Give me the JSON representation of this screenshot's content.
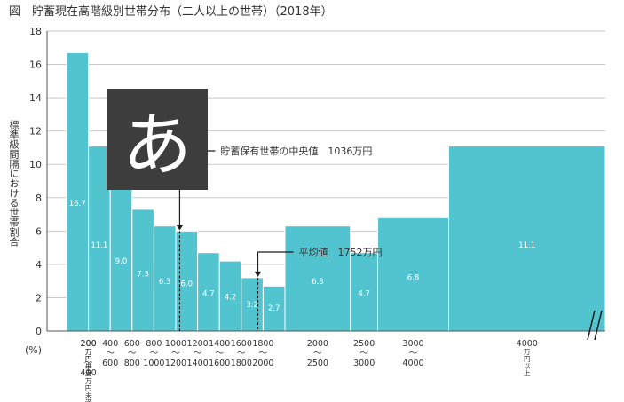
{
  "figure_title": "図　貯蓄現在高階級別世帯分布（二人以上の世帯）（2018年）",
  "badge": {
    "glyph": "あ"
  },
  "colors": {
    "bar": "#52c4d0",
    "grid": "#c8c8c8",
    "badge_bg": "#3d3d3d",
    "badge_fg": "#ffffff",
    "text": "#333333"
  },
  "chart_data": {
    "type": "bar",
    "title": "貯蓄現在高階級別世帯分布（二人以上の世帯）（2018年）",
    "ylabel": "標準級間隔における世帯割合",
    "yunit": "(%)",
    "ylim": [
      0,
      18
    ],
    "yticks": [
      0,
      2,
      4,
      6,
      8,
      10,
      12,
      14,
      16,
      18
    ],
    "grid": true,
    "unit_label": "万円",
    "bins": [
      {
        "from": 0,
        "to": 200,
        "value": 16.7,
        "label_lines": [
          "200",
          "万円未満"
        ]
      },
      {
        "from": 200,
        "to": 400,
        "value": 11.1,
        "label_lines": [
          "200",
          "万円以上",
          "〜",
          "400",
          "万円未満"
        ]
      },
      {
        "from": 400,
        "to": 600,
        "value": 9.0,
        "label_lines": [
          "400",
          "〜",
          "600"
        ]
      },
      {
        "from": 600,
        "to": 800,
        "value": 7.3,
        "label_lines": [
          "600",
          "〜",
          "800"
        ]
      },
      {
        "from": 800,
        "to": 1000,
        "value": 6.3,
        "label_lines": [
          "800",
          "〜",
          "1000"
        ]
      },
      {
        "from": 1000,
        "to": 1200,
        "value": 6.0,
        "label_lines": [
          "1000",
          "〜",
          "1200"
        ]
      },
      {
        "from": 1200,
        "to": 1400,
        "value": 4.7,
        "label_lines": [
          "1200",
          "〜",
          "1400"
        ]
      },
      {
        "from": 1400,
        "to": 1600,
        "value": 4.2,
        "label_lines": [
          "1400",
          "〜",
          "1600"
        ]
      },
      {
        "from": 1600,
        "to": 1800,
        "value": 3.2,
        "label_lines": [
          "1600",
          "〜",
          "1800"
        ]
      },
      {
        "from": 1800,
        "to": 2000,
        "value": 2.7,
        "label_lines": [
          "1800",
          "〜",
          "2000"
        ]
      },
      {
        "from": 2000,
        "to": 2500,
        "value": 6.3,
        "label_lines": [
          "2000",
          "〜",
          "2500"
        ]
      },
      {
        "from": 2500,
        "to": 3000,
        "value": 4.7,
        "label_lines": [
          "2500",
          "〜",
          "3000"
        ]
      },
      {
        "from": 3000,
        "to": 4000,
        "value": 6.8,
        "label_lines": [
          "3000",
          "〜",
          "4000"
        ]
      },
      {
        "from": 4000,
        "to": null,
        "value": 11.1,
        "label_lines": [
          "4000",
          "万円以上"
        ]
      }
    ],
    "annotations": [
      {
        "label": "貯蓄保有世帯の中央値",
        "value_text": "1036万円",
        "amount": 1036
      },
      {
        "label": "平均値",
        "value_text": "1752万円",
        "amount": 1752
      }
    ]
  }
}
